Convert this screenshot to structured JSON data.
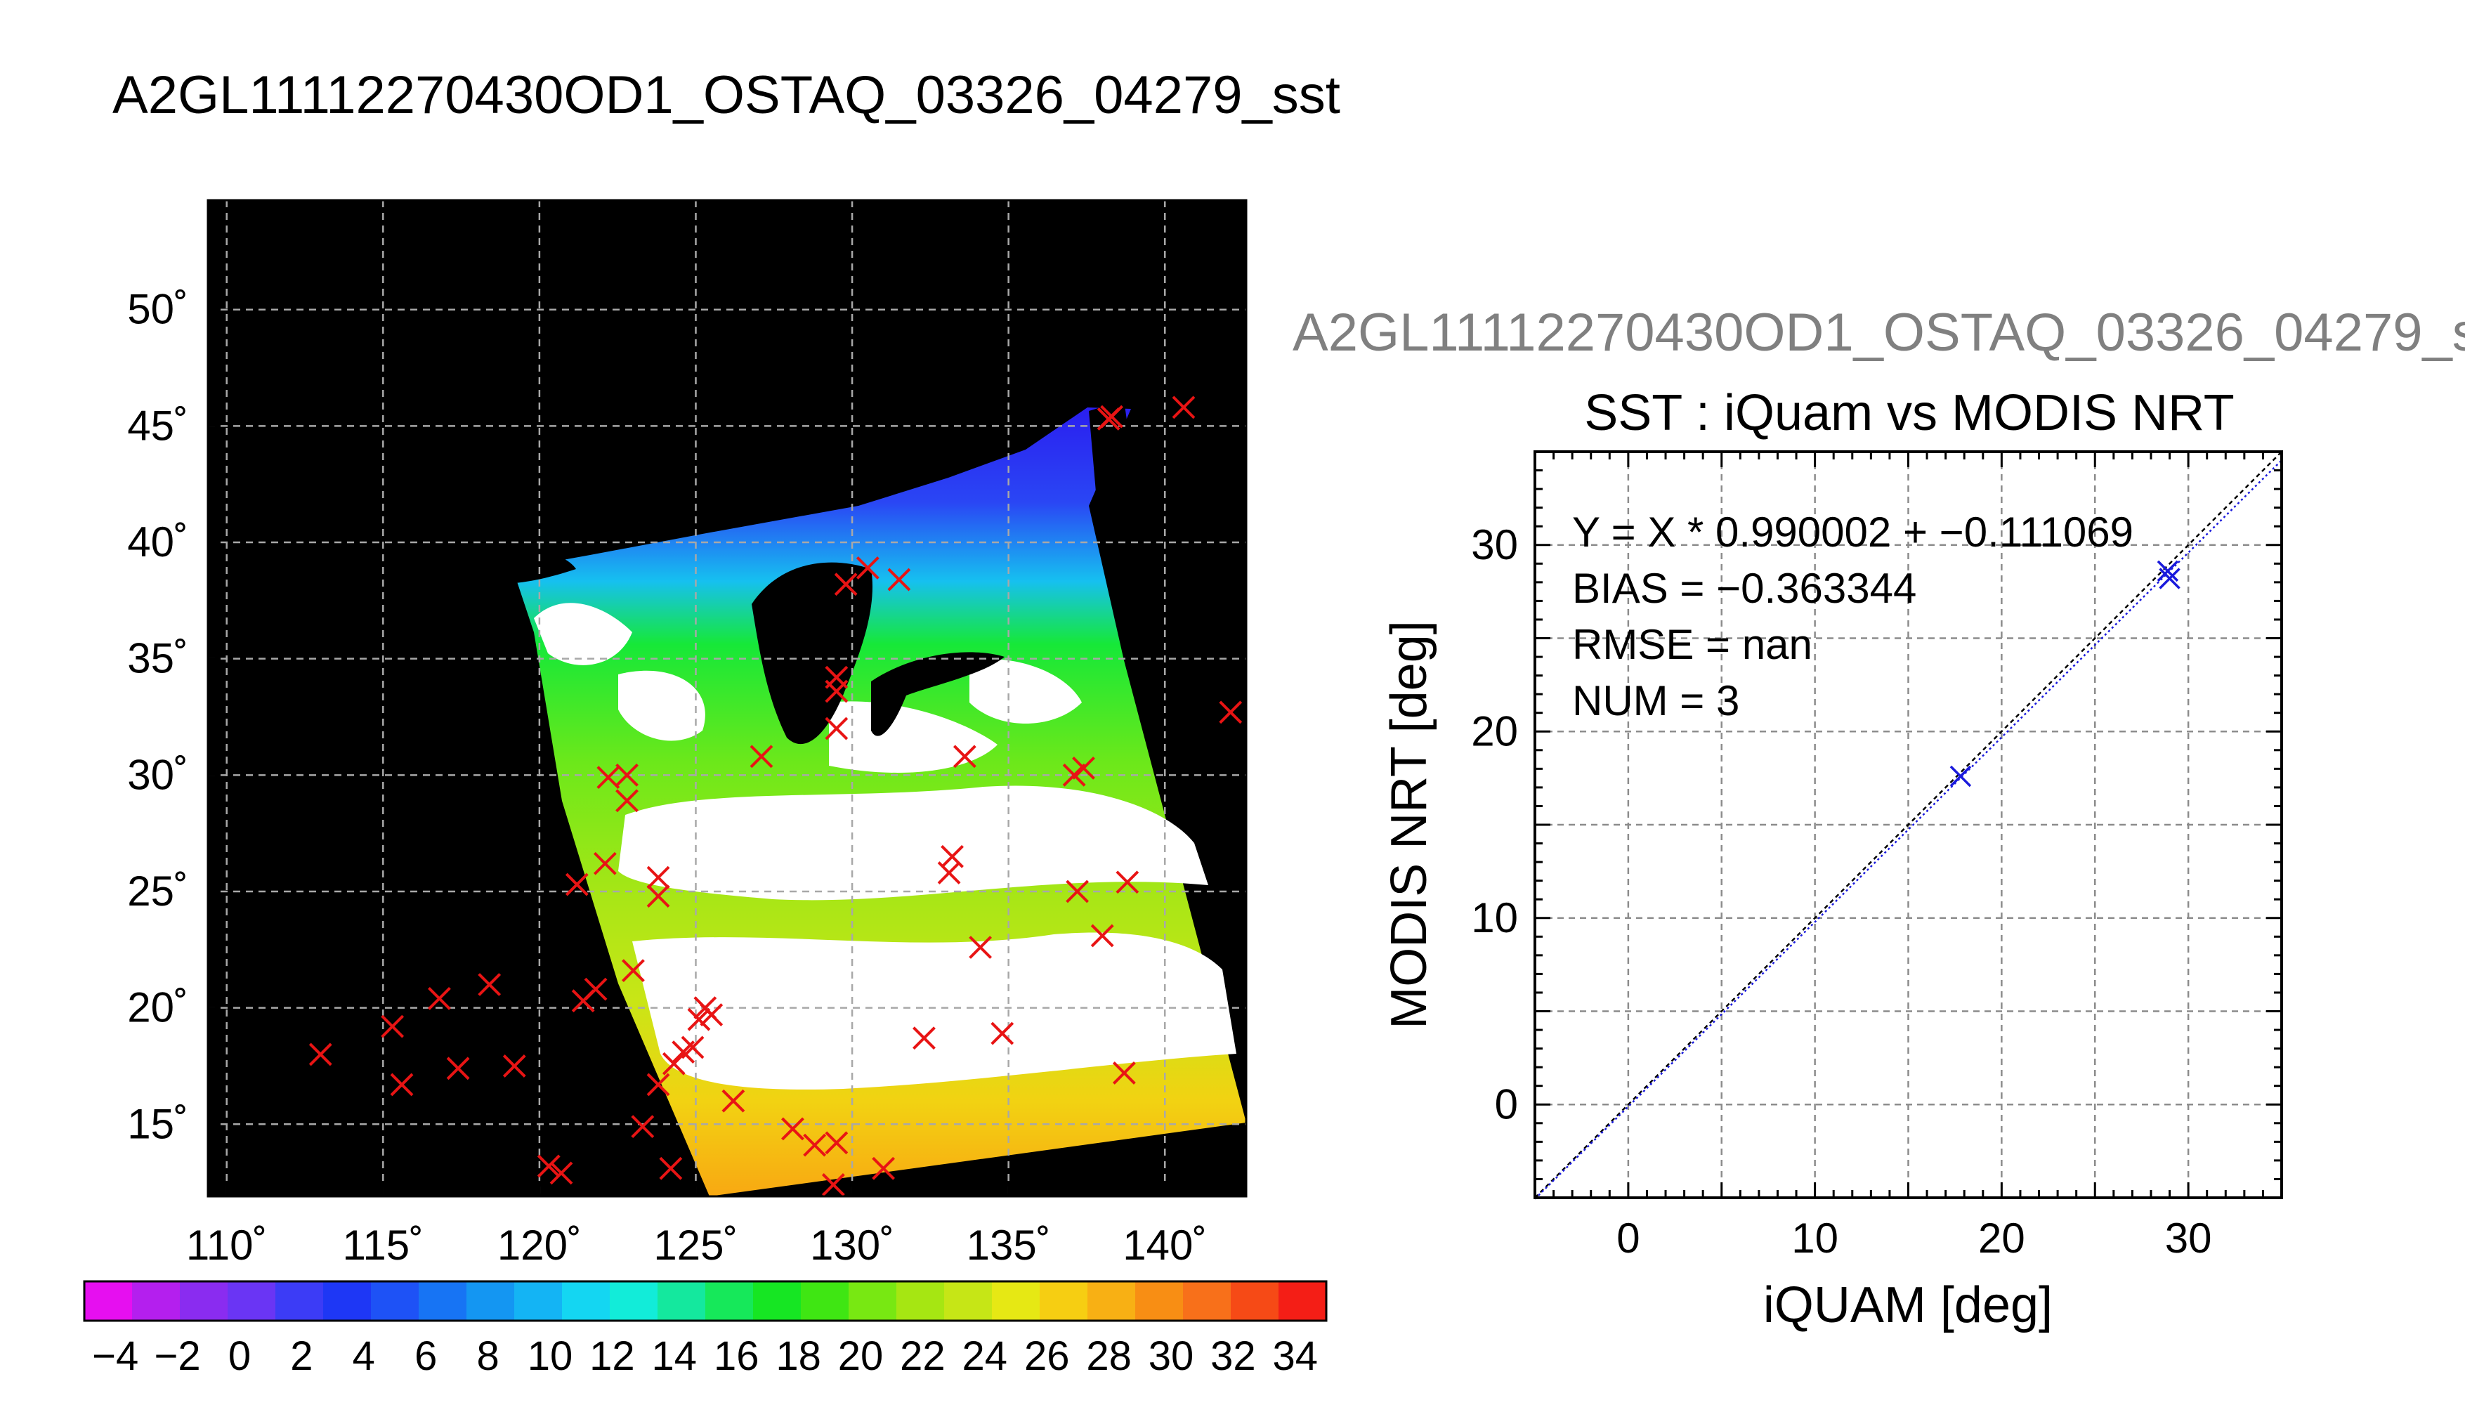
{
  "header": {
    "main_title": "A2GL11112270430OD1_OSTAQ_03326_04279_sst",
    "scatter_header": "A2GL11112270430OD1_OSTAQ_03326_04279_s"
  },
  "map": {
    "lon_ticks": [
      "110˚",
      "115˚",
      "120˚",
      "125˚",
      "130˚",
      "135˚",
      "140˚"
    ],
    "lat_ticks": [
      "50˚",
      "45˚",
      "40˚",
      "35˚",
      "30˚",
      "25˚",
      "20˚",
      "15˚"
    ],
    "lon_values": [
      110,
      115,
      120,
      125,
      130,
      135,
      140
    ],
    "lat_values": [
      50,
      45,
      40,
      35,
      30,
      25,
      20,
      15
    ],
    "lon_range": [
      109.4,
      142.6
    ],
    "lat_range": [
      11.9,
      54.7
    ],
    "matchup_markers": [
      [
        113,
        18
      ],
      [
        115.3,
        19.2
      ],
      [
        115.6,
        16.7
      ],
      [
        116.8,
        20.4
      ],
      [
        117.4,
        17.4
      ],
      [
        118.4,
        21
      ],
      [
        119.2,
        17.5
      ],
      [
        120.3,
        13.2
      ],
      [
        120.7,
        12.9
      ],
      [
        121.2,
        25.3
      ],
      [
        121.4,
        20.3
      ],
      [
        121.8,
        20.8
      ],
      [
        122.1,
        26.2
      ],
      [
        122.2,
        29.9
      ],
      [
        122.8,
        30
      ],
      [
        122.8,
        28.9
      ],
      [
        123,
        21.6
      ],
      [
        123.3,
        14.9
      ],
      [
        123.8,
        25.6
      ],
      [
        123.8,
        24.8
      ],
      [
        123.8,
        16.7
      ],
      [
        124.2,
        13.1
      ],
      [
        124.3,
        17.6
      ],
      [
        124.6,
        18.1
      ],
      [
        124.9,
        18.3
      ],
      [
        125.1,
        19.5
      ],
      [
        125.3,
        20
      ],
      [
        125.5,
        19.7
      ],
      [
        126.2,
        16
      ],
      [
        127.1,
        30.8
      ],
      [
        128.1,
        14.8
      ],
      [
        128.8,
        14.1
      ],
      [
        129.4,
        12.4
      ],
      [
        129.5,
        32
      ],
      [
        129.5,
        34.2
      ],
      [
        129.5,
        33.6
      ],
      [
        129.5,
        14.2
      ],
      [
        129.8,
        38.2
      ],
      [
        130.5,
        38.9
      ],
      [
        131,
        13.1
      ],
      [
        131.5,
        38.4
      ],
      [
        132.3,
        18.7
      ],
      [
        133.1,
        25.8
      ],
      [
        133.2,
        26.5
      ],
      [
        133.6,
        30.8
      ],
      [
        134.1,
        22.6
      ],
      [
        134.8,
        18.9
      ],
      [
        137.1,
        30
      ],
      [
        137.4,
        30.3
      ],
      [
        137.2,
        25
      ],
      [
        138,
        23.1
      ],
      [
        138.2,
        45.3
      ],
      [
        138.3,
        45.4
      ],
      [
        138.7,
        17.2
      ],
      [
        138.8,
        25.4
      ],
      [
        140.6,
        45.8
      ],
      [
        142.1,
        32.7
      ]
    ]
  },
  "colorbar": {
    "tick_labels": [
      "−4",
      "−2",
      "0",
      "2",
      "4",
      "6",
      "8",
      "10",
      "12",
      "14",
      "16",
      "18",
      "20",
      "22",
      "24",
      "26",
      "28",
      "30",
      "32",
      "34"
    ],
    "range": [
      -5,
      35
    ],
    "colors": [
      "#e60ff0",
      "#b41fee",
      "#8a2cf0",
      "#6a35f4",
      "#3c3cf6",
      "#1e37f5",
      "#1e52f6",
      "#1774f4",
      "#1496f2",
      "#14b4f4",
      "#14d6f2",
      "#12ecd9",
      "#14e89e",
      "#16e85a",
      "#16e623",
      "#3fe613",
      "#78e812",
      "#a6e612",
      "#c6e616",
      "#e6e814",
      "#f6ce12",
      "#f8b014",
      "#f88e14",
      "#f8701a",
      "#f64a16",
      "#f41e16"
    ]
  },
  "chart_data": {
    "type": "scatter",
    "title": "SST : iQuam vs MODIS NRT",
    "xlabel": "iQUAM [deg]",
    "ylabel": "MODIS NRT [deg]",
    "xlim": [
      -5,
      35
    ],
    "ylim": [
      -5,
      35
    ],
    "x_ticks": [
      0,
      10,
      20,
      30
    ],
    "y_ticks": [
      0,
      10,
      20,
      30
    ],
    "grid": true,
    "annotations": [
      "Y = X * 0.990002 + −0.111069",
      "BIAS = −0.363344",
      "RMSE = nan",
      "NUM = 3"
    ],
    "points": [
      {
        "x": 17.8,
        "y": 17.6
      },
      {
        "x": 28.9,
        "y": 28.6
      },
      {
        "x": 29.0,
        "y": 28.2
      }
    ],
    "fit": {
      "slope": 0.990002,
      "intercept": -0.111069
    },
    "identity_line": true,
    "marker_color": "#1a1adc"
  }
}
